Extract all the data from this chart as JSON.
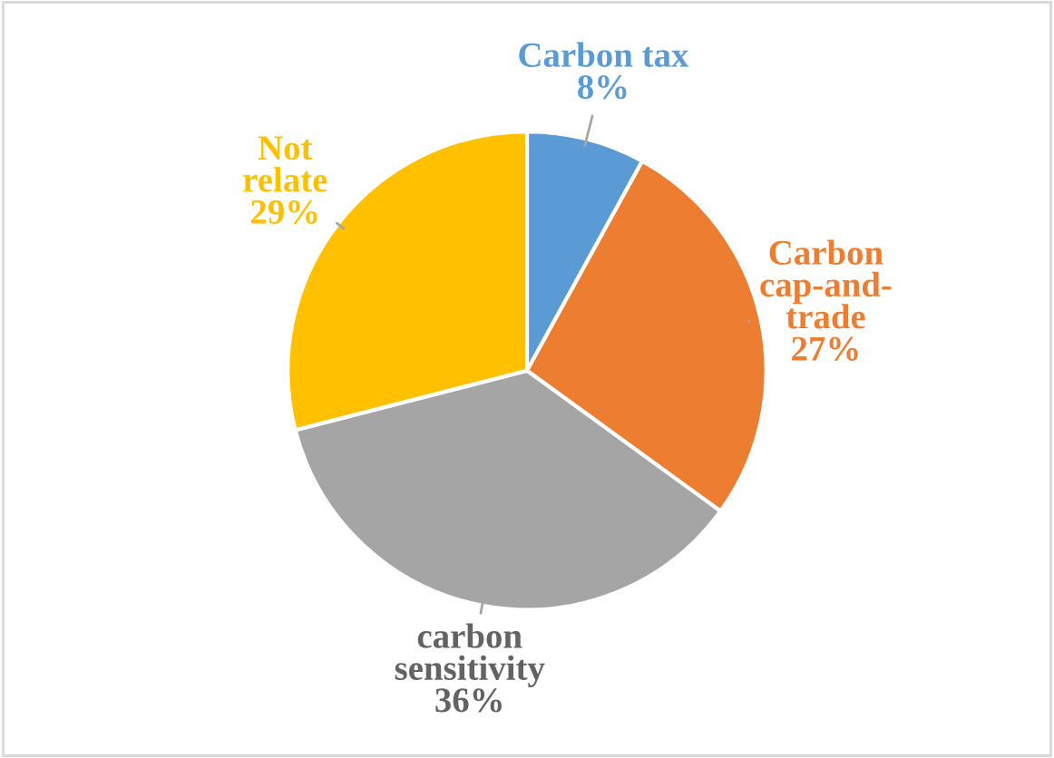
{
  "chart_data": {
    "type": "pie",
    "categories": [
      "Carbon tax",
      "Carbon\ncap-and-\ntrade",
      "carbon\nsensitivity",
      "Not\nrelate"
    ],
    "values": [
      8,
      27,
      36,
      29
    ],
    "colors": [
      "#5b9bd5",
      "#ed7d31",
      "#a5a5a5",
      "#ffc000"
    ],
    "value_labels": [
      "8%",
      "27%",
      "36%",
      "29%"
    ],
    "legend": false
  }
}
